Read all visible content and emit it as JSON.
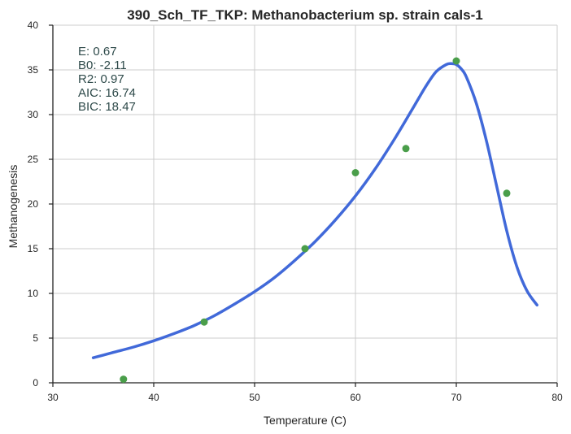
{
  "chart_data": {
    "type": "scatter",
    "title": "390_Sch_TF_TKP: Methanobacterium sp. strain cals-1",
    "xlabel": "Temperature (C)",
    "ylabel": "Methanogenesis",
    "xlim": [
      30,
      80
    ],
    "ylim": [
      0,
      40
    ],
    "xticks": [
      "30",
      "40",
      "50",
      "60",
      "70",
      "80"
    ],
    "yticks": [
      "0",
      "5",
      "10",
      "15",
      "20",
      "25",
      "30",
      "35",
      "40"
    ],
    "grid": true,
    "colors": {
      "points": "#4a9e4a",
      "fit": "#4169d9"
    },
    "points": {
      "x": [
        37,
        45,
        55,
        60,
        65,
        70,
        75
      ],
      "y": [
        0.4,
        6.8,
        15.0,
        23.5,
        26.2,
        36.0,
        21.2
      ]
    },
    "fit_curve": {
      "x": [
        34,
        36,
        38,
        40,
        42,
        44,
        46,
        48,
        50,
        52,
        54,
        56,
        58,
        60,
        62,
        64,
        66,
        67,
        68,
        69,
        69.5,
        70,
        70.5,
        71,
        72,
        73,
        74,
        75,
        76,
        77,
        78
      ],
      "y": [
        2.8,
        3.4,
        4.0,
        4.7,
        5.5,
        6.4,
        7.5,
        8.8,
        10.2,
        11.8,
        13.7,
        15.8,
        18.2,
        20.9,
        24.0,
        27.5,
        31.3,
        33.2,
        34.8,
        35.6,
        35.7,
        35.6,
        35.1,
        34.2,
        31.2,
        27.0,
        22.0,
        17.0,
        13.0,
        10.3,
        8.7
      ]
    },
    "annotations": [
      {
        "label": "E:",
        "value": "0.67"
      },
      {
        "label": "B0:",
        "value": "-2.11"
      },
      {
        "label": "R2:",
        "value": "0.97"
      },
      {
        "label": "AIC:",
        "value": "16.74"
      },
      {
        "label": "BIC:",
        "value": "18.47"
      }
    ]
  }
}
